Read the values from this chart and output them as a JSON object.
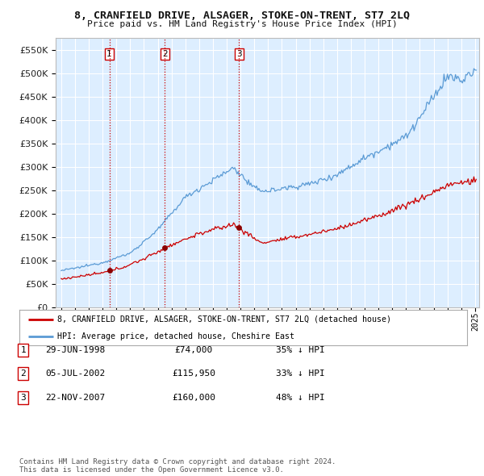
{
  "title": "8, CRANFIELD DRIVE, ALSAGER, STOKE-ON-TRENT, ST7 2LQ",
  "subtitle": "Price paid vs. HM Land Registry's House Price Index (HPI)",
  "legend_line1": "8, CRANFIELD DRIVE, ALSAGER, STOKE-ON-TRENT, ST7 2LQ (detached house)",
  "legend_line2": "HPI: Average price, detached house, Cheshire East",
  "sale_color": "#cc0000",
  "hpi_color": "#5b9bd5",
  "transactions": [
    {
      "label": "1",
      "date": 1998.49,
      "price": 74000
    },
    {
      "label": "2",
      "date": 2002.51,
      "price": 115950
    },
    {
      "label": "3",
      "date": 2007.9,
      "price": 160000
    }
  ],
  "transaction_labels": [
    {
      "num": "1",
      "date_str": "29-JUN-1998",
      "price_str": "£74,000",
      "hpi_str": "35% ↓ HPI"
    },
    {
      "num": "2",
      "date_str": "05-JUL-2002",
      "price_str": "£115,950",
      "hpi_str": "33% ↓ HPI"
    },
    {
      "num": "3",
      "date_str": "22-NOV-2007",
      "price_str": "£160,000",
      "hpi_str": "48% ↓ HPI"
    }
  ],
  "vline_color": "#cc0000",
  "vline_style": ":",
  "marker_color": "#8b0000",
  "ylim": [
    0,
    575000
  ],
  "yticks": [
    0,
    50000,
    100000,
    150000,
    200000,
    250000,
    300000,
    350000,
    400000,
    450000,
    500000,
    550000
  ],
  "xlim_start": 1994.6,
  "xlim_end": 2025.3,
  "footer": "Contains HM Land Registry data © Crown copyright and database right 2024.\nThis data is licensed under the Open Government Licence v3.0.",
  "background_color": "#ffffff",
  "chart_bg_color": "#ddeeff",
  "grid_color": "#ffffff"
}
